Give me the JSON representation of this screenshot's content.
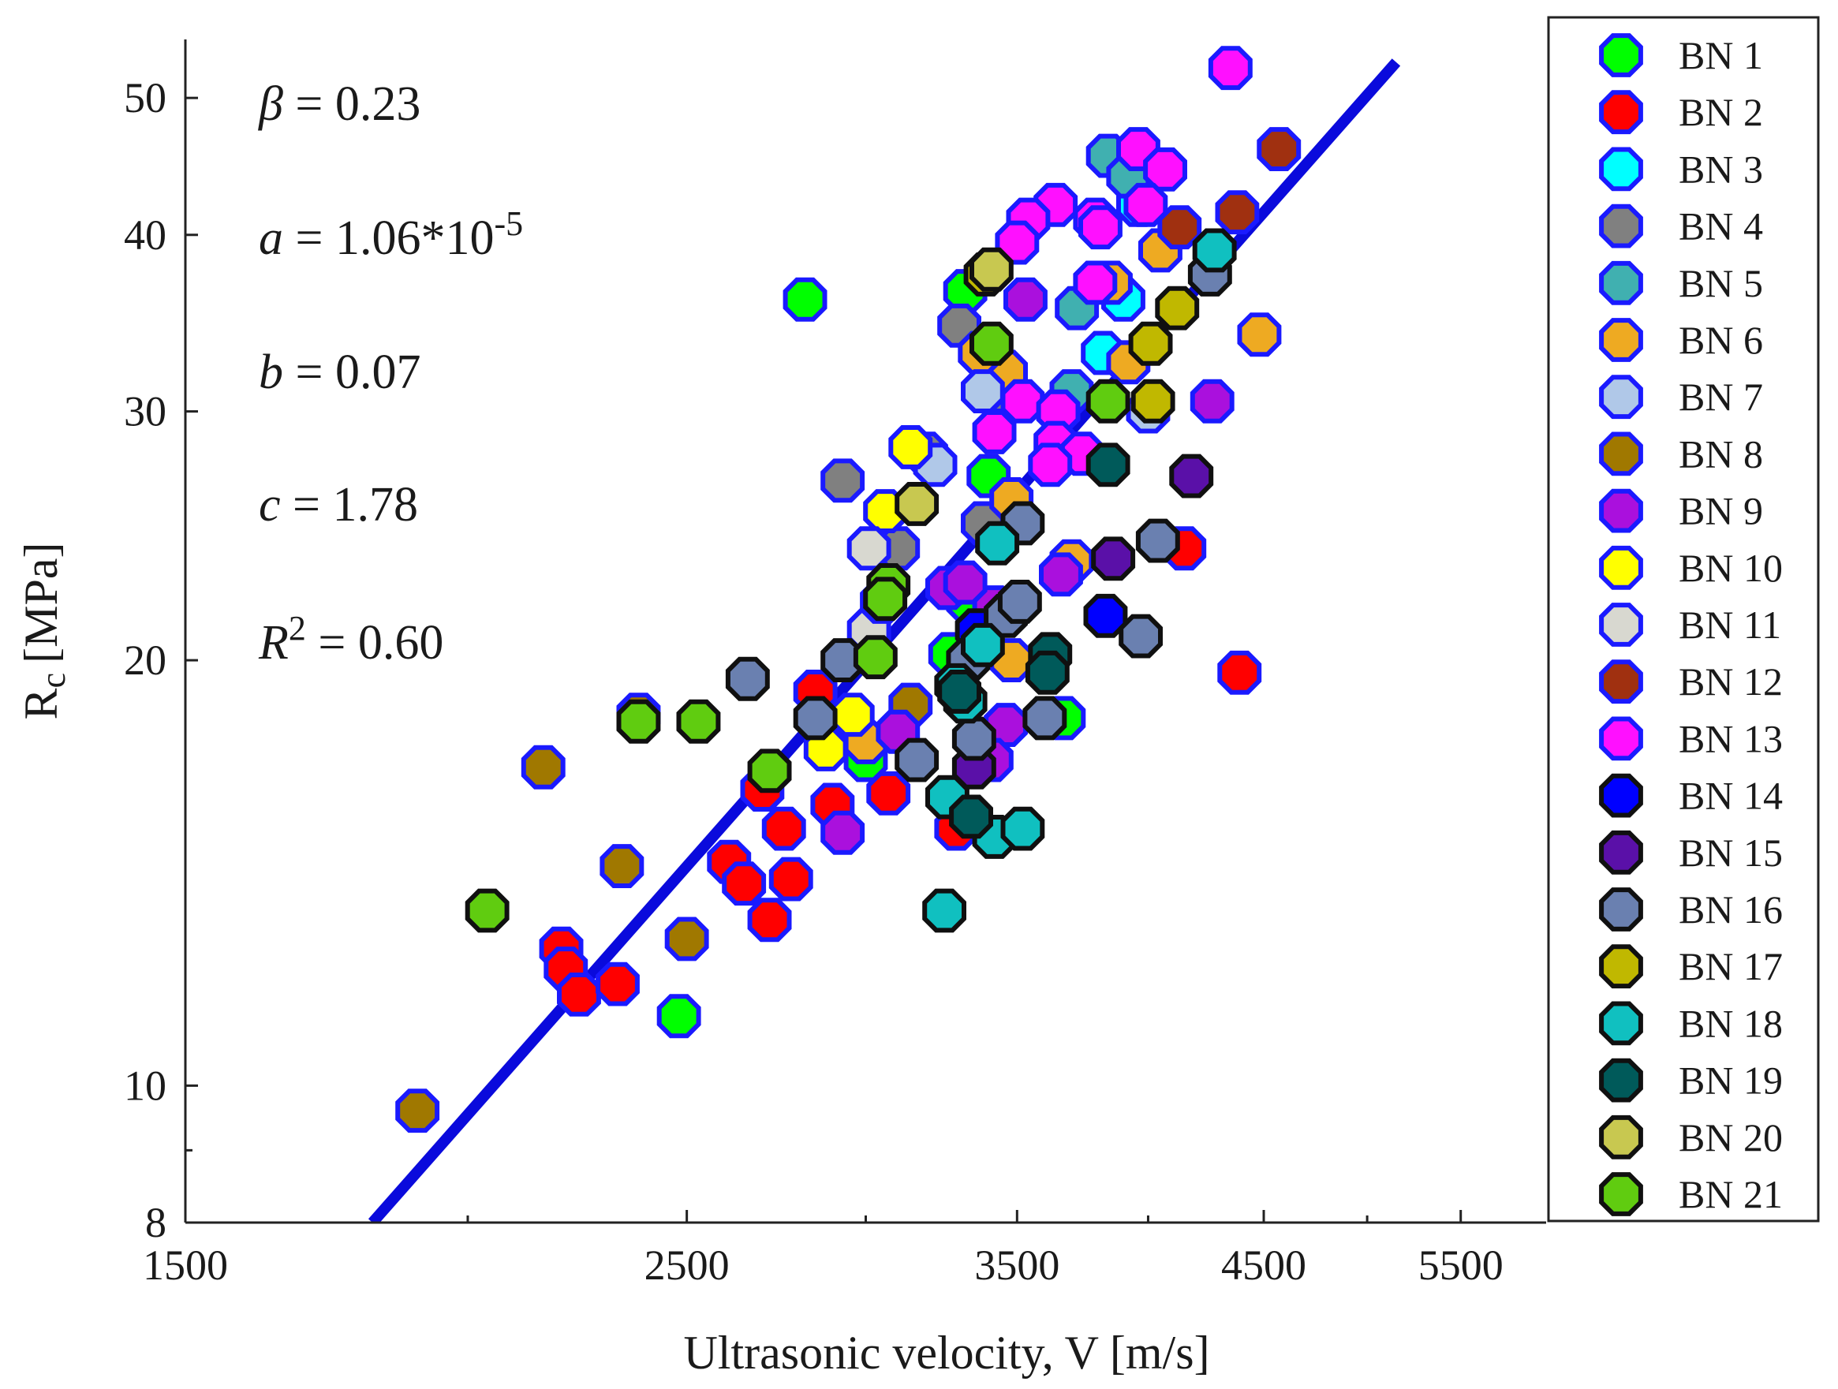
{
  "chart_data": {
    "type": "scatter",
    "xlabel": "Ultrasonic velocity, V [m/s]",
    "ylabel_main": "R",
    "ylabel_sub": "c",
    "ylabel_unit": "[MPa]",
    "xscale": "log",
    "yscale": "log",
    "xlim": [
      1500,
      6000
    ],
    "ylim": [
      8,
      55
    ],
    "xticks": [
      1500,
      2500,
      3500,
      4500,
      5500
    ],
    "xminor": [
      2000,
      3000,
      4000,
      5000
    ],
    "yticks": [
      8,
      10,
      20,
      30,
      40,
      50
    ],
    "yminor": [
      9
    ],
    "legend_position": "right",
    "annotations": [
      {
        "symbol": "β",
        "text": " = 0.23"
      },
      {
        "symbol": "a",
        "text": " = 1.06*10",
        "sup": "-5"
      },
      {
        "symbol": "b",
        "text": " = 0.07"
      },
      {
        "symbol": "c",
        "text": " = 1.78"
      },
      {
        "symbol": "R",
        "sup": "2",
        "text": " = 0.60"
      }
    ],
    "fit": {
      "label": "fit line",
      "color": "#0a0adc",
      "points": [
        [
          1815,
          8
        ],
        [
          5150,
          53
        ]
      ]
    },
    "series": [
      {
        "name": "BN 1",
        "color": "#00ff00",
        "edge": "#1a1aff",
        "points": [
          [
            2820,
            36
          ],
          [
            2480,
            11.2
          ],
          [
            3000,
            17
          ],
          [
            3270,
            20.2
          ],
          [
            3330,
            22
          ],
          [
            3400,
            27
          ],
          [
            3670,
            18.2
          ],
          [
            3320,
            36.5
          ]
        ]
      },
      {
        "name": "BN 2",
        "color": "#ff0000",
        "edge": "#1a1aff",
        "points": [
          [
            2200,
            12.5
          ],
          [
            2210,
            12.1
          ],
          [
            2240,
            11.6
          ],
          [
            2330,
            11.8
          ],
          [
            2610,
            14.4
          ],
          [
            2650,
            13.9
          ],
          [
            2720,
            13.1
          ],
          [
            2760,
            15.2
          ],
          [
            2780,
            14.0
          ],
          [
            2700,
            16.2
          ],
          [
            2900,
            15.8
          ],
          [
            3070,
            16.1
          ],
          [
            3290,
            15.2
          ],
          [
            4150,
            24
          ],
          [
            4390,
            19.6
          ],
          [
            2850,
            19
          ]
        ]
      },
      {
        "name": "BN 3",
        "color": "#00ffff",
        "edge": "#1a1aff",
        "points": [
          [
            3960,
            42
          ],
          [
            3900,
            36
          ],
          [
            3820,
            33
          ]
        ]
      },
      {
        "name": "BN 4",
        "color": "#808080",
        "edge": "#1a1aff",
        "points": [
          [
            2930,
            26.8
          ],
          [
            3190,
            28
          ],
          [
            3300,
            34.5
          ],
          [
            3380,
            25
          ],
          [
            3100,
            24
          ],
          [
            3450,
            31
          ]
        ]
      },
      {
        "name": "BN 5",
        "color": "#40b0b0",
        "edge": "#1a1aff",
        "points": [
          [
            3840,
            45.5
          ],
          [
            3920,
            44
          ],
          [
            3720,
            35.5
          ],
          [
            3700,
            31
          ]
        ]
      },
      {
        "name": "BN 6",
        "color": "#eeaa22",
        "edge": "#1a1aff",
        "points": [
          [
            4480,
            34
          ],
          [
            4050,
            39
          ],
          [
            3920,
            32.5
          ],
          [
            3460,
            32
          ],
          [
            3370,
            33
          ],
          [
            3480,
            26
          ],
          [
            3700,
            23.5
          ],
          [
            3480,
            20
          ],
          [
            3000,
            17.5
          ],
          [
            3850,
            37
          ]
        ]
      },
      {
        "name": "BN 7",
        "color": "#b0c8e8",
        "edge": "#1a1aff",
        "points": [
          [
            4000,
            30
          ],
          [
            3380,
            31
          ],
          [
            3220,
            27.5
          ]
        ]
      },
      {
        "name": "BN 8",
        "color": "#a07800",
        "edge": "#1a1aff",
        "points": [
          [
            1900,
            9.6
          ],
          [
            2160,
            16.8
          ],
          [
            2380,
            18.3
          ],
          [
            2340,
            14.3
          ],
          [
            2500,
            12.7
          ],
          [
            3140,
            18.6
          ]
        ]
      },
      {
        "name": "BN 9",
        "color": "#aa10dd",
        "edge": "#1a1aff",
        "points": [
          [
            2930,
            15.1
          ],
          [
            3100,
            17.8
          ],
          [
            3260,
            22.5
          ],
          [
            3420,
            21.8
          ],
          [
            3460,
            18
          ],
          [
            3410,
            17
          ],
          [
            3660,
            23
          ],
          [
            3530,
            36
          ],
          [
            4270,
            30.5
          ],
          [
            3320,
            22.7
          ]
        ]
      },
      {
        "name": "BN 10",
        "color": "#ffff00",
        "edge": "#1a1aff",
        "points": [
          [
            3140,
            28.3
          ],
          [
            3060,
            25.5
          ],
          [
            2960,
            18.3
          ],
          [
            2880,
            17.3
          ]
        ]
      },
      {
        "name": "BN 11",
        "color": "#d8d8d0",
        "edge": "#1a1aff",
        "points": [
          [
            3010,
            24
          ],
          [
            3010,
            21
          ],
          [
            3050,
            22
          ]
        ]
      },
      {
        "name": "BN 12",
        "color": "#a03010",
        "edge": "#1a1aff",
        "points": [
          [
            4380,
            41.5
          ],
          [
            4570,
            46
          ],
          [
            4130,
            40.5
          ]
        ]
      },
      {
        "name": "BN 13",
        "color": "#ff10ff",
        "edge": "#1a1aff",
        "points": [
          [
            4350,
            52.5
          ],
          [
            3960,
            46
          ],
          [
            4070,
            44.5
          ],
          [
            3990,
            42
          ],
          [
            3640,
            42
          ],
          [
            3790,
            41
          ],
          [
            3540,
            41
          ],
          [
            3500,
            39.5
          ],
          [
            3790,
            37
          ],
          [
            3520,
            30.5
          ],
          [
            3650,
            30
          ],
          [
            3420,
            29
          ],
          [
            3640,
            28.5
          ],
          [
            3740,
            28
          ],
          [
            3620,
            27.5
          ],
          [
            3810,
            40.5
          ]
        ]
      },
      {
        "name": "BN 14",
        "color": "#0000ff",
        "edge": "#101010",
        "points": [
          [
            3830,
            21.5
          ],
          [
            3360,
            21
          ]
        ]
      },
      {
        "name": "BN 15",
        "color": "#5a10a8",
        "edge": "#101010",
        "points": [
          [
            4180,
            27
          ],
          [
            3860,
            23.6
          ],
          [
            3350,
            16.8
          ]
        ]
      },
      {
        "name": "BN 16",
        "color": "#6a80b0",
        "edge": "#101010",
        "points": [
          [
            2660,
            19.4
          ],
          [
            2850,
            18.2
          ],
          [
            2930,
            20
          ],
          [
            3160,
            17
          ],
          [
            3350,
            17.6
          ],
          [
            3330,
            20
          ],
          [
            3460,
            21.5
          ],
          [
            3510,
            22
          ],
          [
            3520,
            25
          ],
          [
            3600,
            18.2
          ],
          [
            3970,
            20.8
          ],
          [
            4040,
            24.3
          ],
          [
            4260,
            37.5
          ]
        ]
      },
      {
        "name": "BN 17",
        "color": "#c0b800",
        "edge": "#101010",
        "points": [
          [
            4120,
            35.5
          ],
          [
            4010,
            33.5
          ],
          [
            4020,
            30.5
          ],
          [
            3390,
            37.5
          ]
        ]
      },
      {
        "name": "BN 18",
        "color": "#10c0c0",
        "edge": "#101010",
        "points": [
          [
            3260,
            16
          ],
          [
            3250,
            13.3
          ],
          [
            3420,
            15
          ],
          [
            3520,
            15.2
          ],
          [
            3290,
            19.2
          ],
          [
            3320,
            18.7
          ],
          [
            3380,
            20.5
          ],
          [
            3430,
            24.2
          ],
          [
            4280,
            39
          ]
        ]
      },
      {
        "name": "BN 19",
        "color": "#005a5a",
        "edge": "#101010",
        "points": [
          [
            3840,
            27.5
          ],
          [
            3300,
            19
          ],
          [
            3340,
            15.5
          ],
          [
            3620,
            20.2
          ],
          [
            3610,
            19.6
          ]
        ]
      },
      {
        "name": "BN 20",
        "color": "#c8c850",
        "edge": "#101010",
        "points": [
          [
            3160,
            25.8
          ],
          [
            3410,
            37.8
          ]
        ]
      },
      {
        "name": "BN 21",
        "color": "#60cc10",
        "edge": "#101010",
        "points": [
          [
            2040,
            13.3
          ],
          [
            2380,
            18.1
          ],
          [
            2530,
            18.1
          ],
          [
            2720,
            16.7
          ],
          [
            3030,
            20.1
          ],
          [
            3070,
            22.6
          ],
          [
            3060,
            22.1
          ],
          [
            3410,
            33.5
          ],
          [
            3840,
            30.5
          ]
        ]
      }
    ]
  }
}
